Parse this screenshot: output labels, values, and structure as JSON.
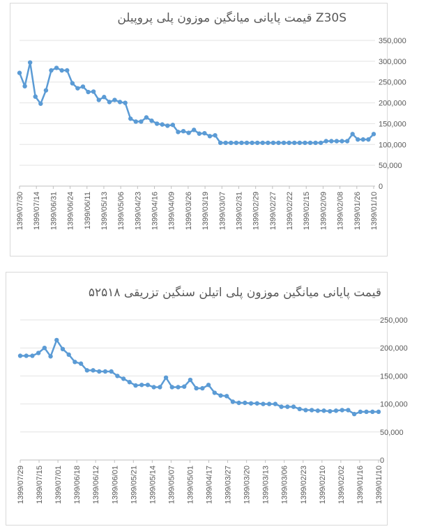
{
  "chart_data": [
    {
      "type": "line",
      "title": "قیمت پایانی میانگین موزون پلی پروپیلن Z30S",
      "xlabel": "",
      "ylabel": "",
      "ylim": [
        0,
        350000
      ],
      "y_ticks": [
        "0",
        "50,000",
        "100,000",
        "150,000",
        "200,000",
        "250,000",
        "300,000",
        "350,000"
      ],
      "x_tick_labels": [
        "1399/07/30",
        "1399/07/14",
        "1399/06/31",
        "1399/06/24",
        "1399/06/11",
        "1399/05/13",
        "1399/05/06",
        "1399/04/23",
        "1399/04/16",
        "1399/04/09",
        "1399/03/26",
        "1399/03/19",
        "1399/03/07",
        "1399/02/31",
        "1399/02/29",
        "1399/02/27",
        "1399/02/22",
        "1399/02/15",
        "1399/02/09",
        "1399/02/08",
        "1399/01/26",
        "1399/01/10"
      ],
      "color": "#5b9bd5",
      "grid": true,
      "series": [
        {
          "values": [
            272000,
            240000,
            297000,
            215000,
            198000,
            230000,
            278000,
            284000,
            278000,
            278000,
            247000,
            235000,
            239000,
            226000,
            227000,
            207000,
            214000,
            202000,
            207000,
            202000,
            200000,
            162000,
            155000,
            155000,
            165000,
            157000,
            150000,
            148000,
            145000,
            147000,
            130000,
            132000,
            128000,
            135000,
            126000,
            127000,
            120000,
            122000,
            104000,
            104000,
            104000,
            104000,
            104000,
            104000,
            104000,
            104000,
            104000,
            104000,
            104000,
            104000,
            104000,
            104000,
            104000,
            104000,
            104000,
            104000,
            104000,
            104000,
            108000,
            108000,
            108000,
            108000,
            108000,
            125000,
            112000,
            112000,
            112000,
            125000
          ]
        }
      ]
    },
    {
      "type": "line",
      "title": "قیمت پایانی میانگین موزون پلی اتیلن سنگین تزریقی ۵۲۵۱۸",
      "xlabel": "",
      "ylabel": "",
      "ylim": [
        0,
        250000
      ],
      "y_ticks": [
        "0",
        "50,000",
        "100,000",
        "150,000",
        "200,000",
        "250,000"
      ],
      "x_tick_labels": [
        "1399/07/29",
        "1399/07/15",
        "1399/07/01",
        "1399/06/18",
        "1399/06/12",
        "1399/06/01",
        "1399/05/21",
        "1399/05/14",
        "1399/05/07",
        "1399/05/01",
        "1399/04/17",
        "1399/03/27",
        "1399/03/20",
        "1399/03/13",
        "1399/03/06",
        "1399/02/23",
        "1399/02/10",
        "1399/02/02",
        "1399/01/16",
        "1399/01/10"
      ],
      "color": "#5b9bd5",
      "grid": true,
      "series": [
        {
          "values": [
            186000,
            186000,
            186000,
            191000,
            200000,
            185000,
            214000,
            198000,
            188000,
            175000,
            172000,
            160000,
            160000,
            158000,
            158000,
            158000,
            150000,
            145000,
            139000,
            133000,
            134000,
            134000,
            130000,
            130000,
            147000,
            130000,
            130000,
            131000,
            143000,
            128000,
            128000,
            134000,
            120000,
            115000,
            114000,
            104000,
            102000,
            102000,
            101000,
            101000,
            100000,
            100000,
            100000,
            95000,
            95000,
            95000,
            91000,
            89000,
            89000,
            88000,
            88000,
            87000,
            88000,
            89000,
            89000,
            82000,
            86000,
            86000,
            86000,
            86000
          ]
        }
      ]
    }
  ]
}
